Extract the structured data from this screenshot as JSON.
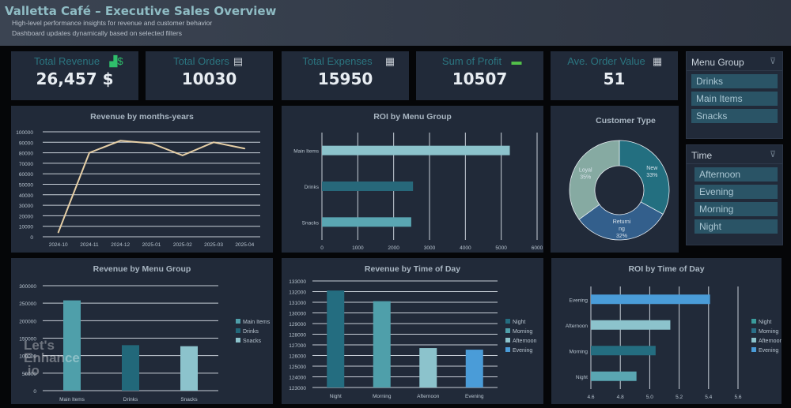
{
  "header": {
    "title": "Valletta Café – Executive Sales Overview",
    "subtitle1": "High-level performance insights for revenue and customer behavior",
    "subtitle2": "Dashboard updates dynamically based on selected filters"
  },
  "kpis": [
    {
      "label": "Total Revenue",
      "value": "26,457 $",
      "icon": "revenue-chart-icon"
    },
    {
      "label": "Total Orders",
      "value": "10030",
      "icon": "orders-icon"
    },
    {
      "label": "Total Expenses",
      "value": "15950",
      "icon": "expenses-receipt-icon"
    },
    {
      "label": "Sum of Profit",
      "value": "10507",
      "icon": "profit-money-icon"
    },
    {
      "label": "Ave. Order Value",
      "value": "51",
      "icon": "calculator-icon"
    }
  ],
  "filters": {
    "menu_group": {
      "title": "Menu Group",
      "items": [
        "Drinks",
        "Main Items",
        "Snacks"
      ]
    },
    "time": {
      "title": "Time",
      "items": [
        "Afternoon",
        "Evening",
        "Morning",
        "Night"
      ]
    }
  },
  "watermark": "Let's Enhance .io",
  "chart_data": [
    {
      "id": "rev_month",
      "type": "line",
      "title": "Revenue by months-years",
      "categories": [
        "2024-10",
        "2024-11",
        "2024-12",
        "2025-01",
        "2025-02",
        "2025-03",
        "2025-04"
      ],
      "values": [
        4000,
        80000,
        91500,
        89000,
        77500,
        90000,
        84000
      ],
      "ylim": [
        0,
        100000
      ],
      "yticks": [
        0,
        10000,
        20000,
        30000,
        40000,
        50000,
        60000,
        70000,
        80000,
        90000,
        100000
      ],
      "grid": true,
      "color": "#e6cfa6"
    },
    {
      "id": "roi_menu",
      "type": "bar",
      "orientation": "horizontal",
      "title": "ROI by Menu Group",
      "categories": [
        "Main Items",
        "Drinks",
        "Snacks"
      ],
      "values": [
        5240,
        2540,
        2490
      ],
      "colors": [
        "#8cc3cc",
        "#27687a",
        "#5aa6b2"
      ],
      "xlim": [
        0,
        6000
      ],
      "xticks": [
        0,
        1000,
        2000,
        3000,
        4000,
        5000,
        6000
      ],
      "grid": true
    },
    {
      "id": "customer_type",
      "type": "pie",
      "donut": true,
      "title": "Customer Type",
      "categories": [
        "New",
        "Returning",
        "Loyal"
      ],
      "labels": [
        "New",
        "Returni ng",
        "Loyal"
      ],
      "values": [
        33,
        32,
        35
      ],
      "colors": [
        "#236f80",
        "#335f8c",
        "#86aaa2"
      ]
    },
    {
      "id": "rev_menu",
      "type": "bar",
      "title": "Revenue by Menu Group",
      "categories": [
        "Main Items",
        "Drinks",
        "Snacks"
      ],
      "values": [
        258000,
        130000,
        127000
      ],
      "colors": [
        "#4f9faa",
        "#22687a",
        "#8cc3cc"
      ],
      "ylim": [
        0,
        300000
      ],
      "yticks": [
        0,
        50000,
        100000,
        150000,
        200000,
        250000,
        300000
      ],
      "legend": "right",
      "grid": true
    },
    {
      "id": "rev_time",
      "type": "bar",
      "title": "Revenue by Time of Day",
      "categories": [
        "Night",
        "Morning",
        "Afternoon",
        "Evening"
      ],
      "values": [
        132100,
        131100,
        126700,
        126550
      ],
      "colors": [
        "#246d80",
        "#4f9faa",
        "#8cc3cc",
        "#4a9cd8"
      ],
      "ylim": [
        123000,
        133000
      ],
      "yticks": [
        123000,
        124000,
        125000,
        126000,
        127000,
        128000,
        129000,
        130000,
        131000,
        132000,
        133000
      ],
      "legend": "right",
      "grid": true
    },
    {
      "id": "roi_time",
      "type": "bar",
      "orientation": "horizontal",
      "title": "ROI by Time of Day",
      "categories": [
        "Evening",
        "Afternoon",
        "Morning",
        "Night"
      ],
      "values": [
        5.41,
        5.14,
        5.04,
        4.91
      ],
      "colors": [
        "#4a9cd8",
        "#8cc3cc",
        "#246d80",
        "#5aa6b2"
      ],
      "xlim": [
        4.6,
        5.6
      ],
      "xticks": [
        "4.6",
        "4.8",
        "5.0",
        "5.2",
        "5.4",
        "5.6"
      ],
      "legend": "right",
      "legend_items": [
        "Night",
        "Morning",
        "Afternoon",
        "Evening"
      ],
      "legend_colors": [
        "#3a9b9c",
        "#2a6f88",
        "#8cc3cc",
        "#4a9cd8"
      ],
      "grid": true
    }
  ]
}
